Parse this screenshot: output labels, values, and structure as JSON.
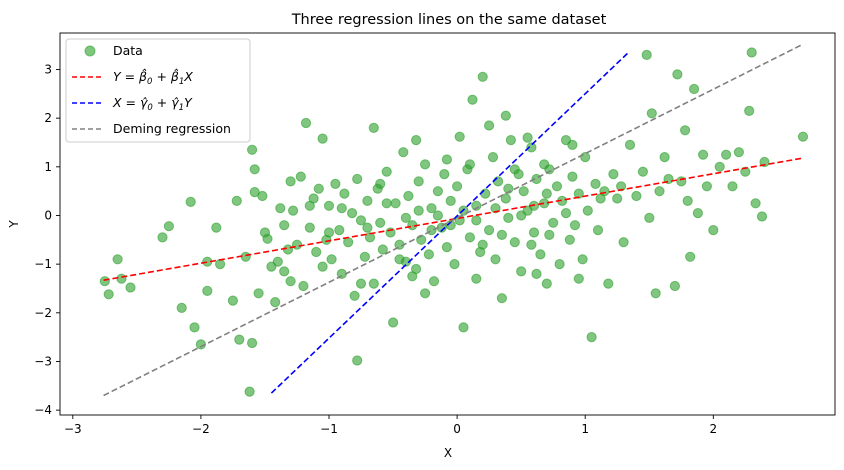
{
  "chart_data": {
    "type": "scatter",
    "title": "Three regression lines on the same dataset",
    "xlabel": "X",
    "ylabel": "Y",
    "xlim": [
      -3.1,
      2.95
    ],
    "ylim": [
      -4.1,
      3.75
    ],
    "xticks": [
      -3,
      -2,
      -1,
      0,
      1,
      2
    ],
    "yticks": [
      -4,
      -3,
      -2,
      -1,
      0,
      1,
      2,
      3
    ],
    "grid": false,
    "legend_placement": "top-left",
    "legend": [
      {
        "key": "data",
        "label": "Data",
        "kind": "marker",
        "color": "#2ca02c"
      },
      {
        "key": "ols_y",
        "label": "Y = β̂0 + β̂1X",
        "kind": "dashed",
        "color": "#ff0000"
      },
      {
        "key": "ols_x",
        "label": "X = γ̂0 + γ̂1Y",
        "kind": "dashed",
        "color": "#0000ff"
      },
      {
        "key": "deming",
        "label": "Deming regression",
        "kind": "dashed",
        "color": "#808080"
      }
    ],
    "lines": [
      {
        "name": "Y = β̂0 + β̂1X",
        "color": "#ff0000",
        "style": "dashed",
        "x": [
          -2.76,
          2.7
        ],
        "y": [
          -1.33,
          1.18
        ]
      },
      {
        "name": "X = γ̂0 + γ̂1Y",
        "color": "#0000ff",
        "style": "dashed",
        "x": [
          -1.45,
          1.33
        ],
        "y": [
          -3.65,
          3.33
        ]
      },
      {
        "name": "Deming regression",
        "color": "#808080",
        "style": "dashed",
        "x": [
          -2.76,
          2.7
        ],
        "y": [
          -3.7,
          3.52
        ]
      }
    ],
    "scatter": {
      "name": "Data",
      "color": "#2ca02c",
      "alpha": 0.6,
      "points": [
        [
          -2.75,
          -1.35
        ],
        [
          -2.72,
          -1.62
        ],
        [
          -2.65,
          -0.9
        ],
        [
          -2.62,
          -1.3
        ],
        [
          -2.55,
          -1.48
        ],
        [
          -2.3,
          -0.45
        ],
        [
          -2.25,
          -0.22
        ],
        [
          -2.15,
          -1.9
        ],
        [
          -2.08,
          0.28
        ],
        [
          -2.05,
          -2.3
        ],
        [
          -2.0,
          -2.65
        ],
        [
          -1.95,
          -0.95
        ],
        [
          -1.88,
          -0.25
        ],
        [
          -1.85,
          -1.0
        ],
        [
          -1.75,
          -1.75
        ],
        [
          -1.7,
          -2.55
        ],
        [
          -1.65,
          -0.85
        ],
        [
          -1.6,
          -2.62
        ],
        [
          -1.58,
          0.48
        ],
        [
          -1.55,
          -1.6
        ],
        [
          -1.52,
          0.4
        ],
        [
          -1.5,
          -0.35
        ],
        [
          -1.48,
          -0.48
        ],
        [
          -1.45,
          -1.05
        ],
        [
          -1.42,
          -1.78
        ],
        [
          -1.4,
          -0.95
        ],
        [
          -1.38,
          0.15
        ],
        [
          -1.35,
          -0.2
        ],
        [
          -1.32,
          -0.7
        ],
        [
          -1.3,
          -1.35
        ],
        [
          -1.28,
          0.1
        ],
        [
          -1.25,
          -0.6
        ],
        [
          -1.22,
          0.8
        ],
        [
          -1.2,
          -1.45
        ],
        [
          -1.15,
          -0.25
        ],
        [
          -1.12,
          0.35
        ],
        [
          -1.1,
          -0.75
        ],
        [
          -1.08,
          0.55
        ],
        [
          -1.05,
          -1.05
        ],
        [
          -1.02,
          -0.5
        ],
        [
          -1.0,
          0.2
        ],
        [
          -0.98,
          -0.9
        ],
        [
          -0.95,
          0.65
        ],
        [
          -0.92,
          -0.3
        ],
        [
          -0.9,
          -1.2
        ],
        [
          -0.88,
          0.45
        ],
        [
          -0.85,
          -0.55
        ],
        [
          -0.82,
          0.05
        ],
        [
          -0.8,
          -1.65
        ],
        [
          -0.78,
          0.75
        ],
        [
          -0.75,
          -0.1
        ],
        [
          -0.72,
          -0.85
        ],
        [
          -0.7,
          0.3
        ],
        [
          -0.68,
          -0.45
        ],
        [
          -0.65,
          -1.4
        ],
        [
          -0.62,
          0.55
        ],
        [
          -0.6,
          -0.15
        ],
        [
          -0.58,
          -0.7
        ],
        [
          -0.55,
          0.9
        ],
        [
          -0.52,
          -0.35
        ],
        [
          -0.5,
          -2.2
        ],
        [
          -0.48,
          0.25
        ],
        [
          -0.45,
          -0.6
        ],
        [
          -0.42,
          1.3
        ],
        [
          -0.4,
          -0.95
        ],
        [
          -0.38,
          0.4
        ],
        [
          -0.35,
          -0.2
        ],
        [
          -0.32,
          -1.1
        ],
        [
          -0.3,
          0.7
        ],
        [
          -0.28,
          -0.5
        ],
        [
          -0.25,
          1.05
        ],
        [
          -0.22,
          -0.8
        ],
        [
          -0.2,
          0.15
        ],
        [
          -0.18,
          -1.35
        ],
        [
          -0.15,
          0.5
        ],
        [
          -0.12,
          -0.25
        ],
        [
          -0.1,
          0.85
        ],
        [
          -0.08,
          -0.65
        ],
        [
          -0.05,
          0.3
        ],
        [
          -0.02,
          -1.0
        ],
        [
          0.0,
          0.6
        ],
        [
          0.02,
          -0.1
        ],
        [
          0.05,
          -2.3
        ],
        [
          0.08,
          0.95
        ],
        [
          0.1,
          -0.45
        ],
        [
          0.12,
          2.38
        ],
        [
          0.15,
          0.2
        ],
        [
          0.18,
          -0.75
        ],
        [
          0.2,
          2.85
        ],
        [
          0.22,
          0.45
        ],
        [
          0.25,
          -0.3
        ],
        [
          0.28,
          1.2
        ],
        [
          0.3,
          -0.9
        ],
        [
          0.32,
          0.7
        ],
        [
          0.35,
          -1.7
        ],
        [
          0.38,
          0.35
        ],
        [
          0.4,
          -0.05
        ],
        [
          0.42,
          1.55
        ],
        [
          0.45,
          -0.55
        ],
        [
          0.48,
          0.85
        ],
        [
          0.5,
          -1.15
        ],
        [
          0.52,
          0.5
        ],
        [
          0.55,
          0.1
        ],
        [
          0.58,
          1.4
        ],
        [
          0.6,
          -0.35
        ],
        [
          0.62,
          0.75
        ],
        [
          0.65,
          -0.8
        ],
        [
          0.68,
          0.25
        ],
        [
          0.7,
          -1.4
        ],
        [
          0.72,
          0.95
        ],
        [
          0.75,
          -0.15
        ],
        [
          0.78,
          0.6
        ],
        [
          0.8,
          -1.0
        ],
        [
          0.82,
          0.3
        ],
        [
          0.85,
          1.55
        ],
        [
          0.88,
          -0.5
        ],
        [
          0.9,
          0.8
        ],
        [
          0.92,
          -0.2
        ],
        [
          0.95,
          0.45
        ],
        [
          0.98,
          -0.9
        ],
        [
          1.0,
          1.2
        ],
        [
          1.02,
          0.1
        ],
        [
          1.05,
          -2.5
        ],
        [
          1.08,
          0.65
        ],
        [
          1.1,
          -0.3
        ],
        [
          1.15,
          0.5
        ],
        [
          1.18,
          -1.4
        ],
        [
          1.22,
          0.85
        ],
        [
          1.25,
          0.35
        ],
        [
          1.3,
          -0.55
        ],
        [
          1.35,
          1.45
        ],
        [
          1.4,
          0.4
        ],
        [
          1.45,
          0.9
        ],
        [
          1.48,
          3.3
        ],
        [
          1.5,
          -0.05
        ],
        [
          1.52,
          2.1
        ],
        [
          1.55,
          -1.6
        ],
        [
          1.58,
          0.5
        ],
        [
          1.62,
          1.2
        ],
        [
          1.65,
          0.75
        ],
        [
          1.7,
          -1.45
        ],
        [
          1.72,
          2.9
        ],
        [
          1.75,
          0.7
        ],
        [
          1.78,
          1.75
        ],
        [
          1.8,
          0.3
        ],
        [
          1.82,
          -0.85
        ],
        [
          1.85,
          2.6
        ],
        [
          1.88,
          0.05
        ],
        [
          1.92,
          1.25
        ],
        [
          1.95,
          0.6
        ],
        [
          2.0,
          -0.3
        ],
        [
          2.05,
          1.0
        ],
        [
          2.1,
          1.25
        ],
        [
          2.15,
          0.6
        ],
        [
          2.2,
          1.3
        ],
        [
          2.25,
          0.9
        ],
        [
          2.28,
          2.15
        ],
        [
          2.3,
          3.35
        ],
        [
          2.33,
          0.25
        ],
        [
          2.38,
          -0.02
        ],
        [
          2.4,
          1.1
        ],
        [
          2.7,
          1.62
        ],
        [
          -1.6,
          1.35
        ],
        [
          -1.62,
          -3.62
        ],
        [
          -0.78,
          -2.98
        ],
        [
          -1.58,
          0.95
        ],
        [
          -1.72,
          0.3
        ],
        [
          -1.3,
          0.7
        ],
        [
          -1.18,
          1.9
        ],
        [
          -1.05,
          1.58
        ],
        [
          -0.65,
          1.8
        ],
        [
          -0.32,
          1.55
        ],
        [
          -0.08,
          1.15
        ],
        [
          0.02,
          1.62
        ],
        [
          0.1,
          1.05
        ],
        [
          0.25,
          1.85
        ],
        [
          0.38,
          2.05
        ],
        [
          0.55,
          1.6
        ],
        [
          0.68,
          1.05
        ],
        [
          0.9,
          1.45
        ],
        [
          -0.2,
          -0.3
        ],
        [
          -0.15,
          0.0
        ],
        [
          -0.05,
          -0.2
        ],
        [
          0.05,
          0.1
        ],
        [
          0.15,
          -0.1
        ],
        [
          -0.3,
          0.1
        ],
        [
          -0.4,
          -0.05
        ],
        [
          -0.55,
          0.25
        ],
        [
          -0.7,
          -0.25
        ],
        [
          0.3,
          0.15
        ],
        [
          0.4,
          0.55
        ],
        [
          0.5,
          0.0
        ],
        [
          0.6,
          0.2
        ],
        [
          0.7,
          0.45
        ],
        [
          -0.9,
          0.15
        ],
        [
          -1.0,
          -0.35
        ],
        [
          -1.15,
          0.2
        ],
        [
          -0.6,
          0.65
        ],
        [
          -0.45,
          -0.9
        ],
        [
          0.2,
          -0.6
        ],
        [
          0.35,
          -0.4
        ],
        [
          0.45,
          0.95
        ],
        [
          0.58,
          -0.6
        ],
        [
          0.72,
          -0.4
        ],
        [
          0.85,
          0.05
        ],
        [
          1.12,
          0.35
        ],
        [
          1.28,
          0.6
        ],
        [
          -1.95,
          -1.55
        ],
        [
          -1.35,
          -1.15
        ],
        [
          -0.25,
          -1.6
        ],
        [
          0.15,
          -1.3
        ],
        [
          0.62,
          -1.2
        ],
        [
          0.95,
          -1.3
        ],
        [
          -0.75,
          -1.4
        ],
        [
          -0.35,
          -1.25
        ]
      ]
    }
  }
}
